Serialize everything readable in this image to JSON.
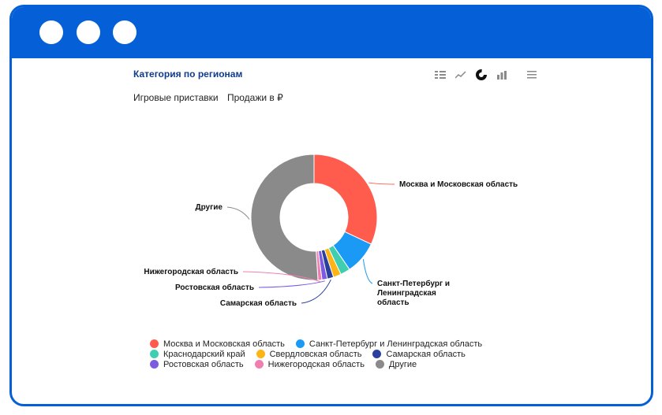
{
  "panel": {
    "title": "Категория по регионам",
    "filter_category": "Игровые приставки",
    "filter_metric": "Продажи в ₽"
  },
  "toolbar_icons": [
    "table-icon",
    "line-chart-icon",
    "donut-chart-icon",
    "bar-chart-icon",
    "menu-icon"
  ],
  "chart_data": {
    "type": "pie",
    "donut": true,
    "categories": [
      "Москва и Московская область",
      "Санкт-Петербург и Ленинградская область",
      "Краснодарский край",
      "Свердловская область",
      "Самарская область",
      "Ростовская область",
      "Нижегородская область",
      "Другие"
    ],
    "values": [
      32,
      8.5,
      2.5,
      2,
      1.6,
      1.4,
      1.0,
      51
    ],
    "colors": [
      "#ff5c4d",
      "#1a9af5",
      "#3fcfb0",
      "#fdb515",
      "#2b3f9e",
      "#7b5be0",
      "#f07fb0",
      "#8a8a8a"
    ],
    "labels": [
      {
        "index": 0,
        "text": [
          "Москва и Московская область"
        ]
      },
      {
        "index": 1,
        "text": [
          "Санкт-Петербург и",
          "Ленинградская",
          "область"
        ]
      },
      {
        "index": 4,
        "text": [
          "Самарская область"
        ]
      },
      {
        "index": 5,
        "text": [
          "Ростовская область"
        ]
      },
      {
        "index": 6,
        "text": [
          "Нижегородская область"
        ]
      },
      {
        "index": 7,
        "text": [
          "Другие"
        ]
      }
    ],
    "legend_position": "bottom"
  },
  "legend_rows": [
    [
      0,
      1
    ],
    [
      2,
      3,
      4
    ],
    [
      5,
      6,
      7
    ]
  ]
}
